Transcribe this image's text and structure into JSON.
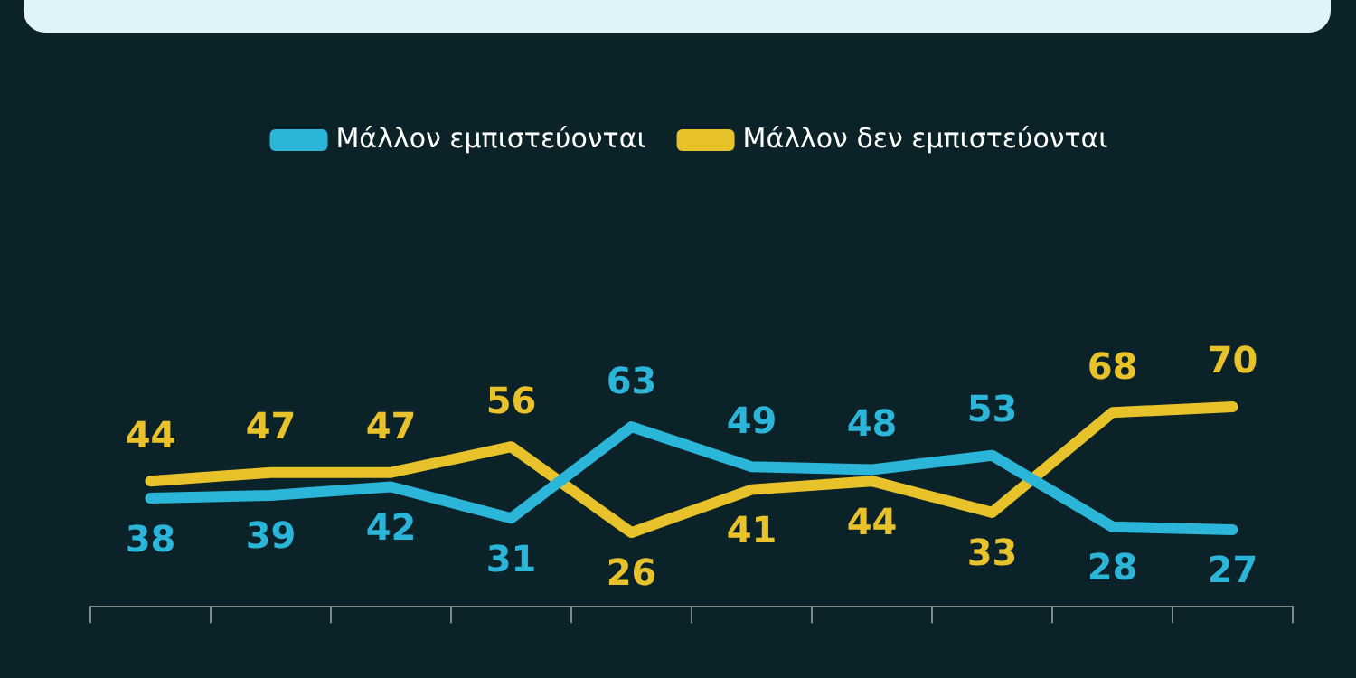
{
  "chart_data": {
    "type": "line",
    "categories": [
      null,
      null,
      null,
      null,
      null,
      null,
      null,
      null,
      null,
      null
    ],
    "series": [
      {
        "name": "Μάλλον εμπιστεύονται",
        "color": "#2bb5d8",
        "values": [
          38,
          39,
          42,
          31,
          63,
          49,
          48,
          53,
          28,
          27
        ]
      },
      {
        "name": "Μάλλον δεν εμπιστεύονται",
        "color": "#e8c22a",
        "values": [
          44,
          47,
          47,
          56,
          26,
          41,
          44,
          33,
          68,
          70
        ]
      }
    ],
    "data_labels": true,
    "legend": "top",
    "marker": "none",
    "line_style": "solid",
    "grid": false
  }
}
